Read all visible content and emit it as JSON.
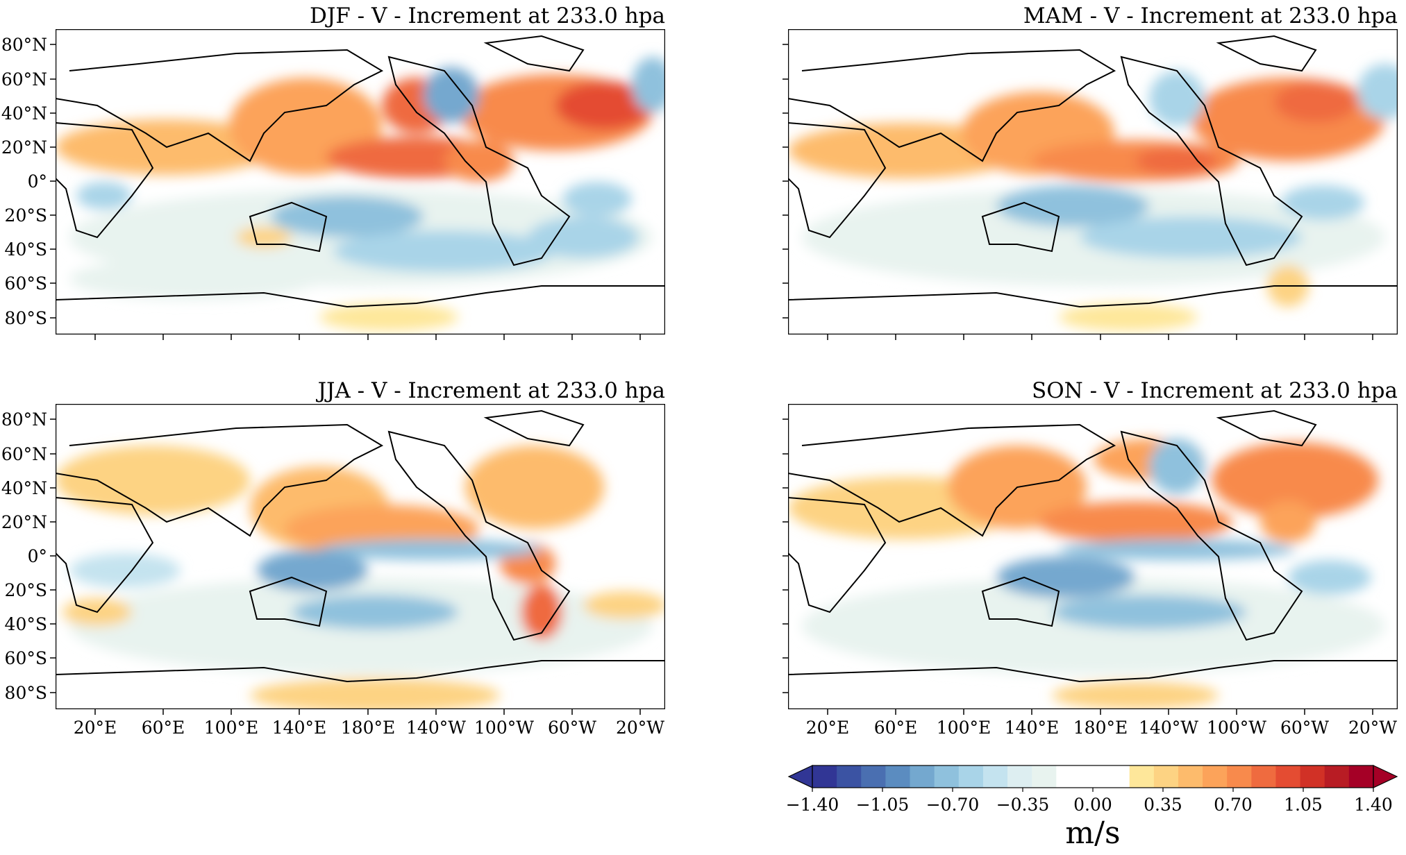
{
  "panels": [
    {
      "id": "djf",
      "title": "DJF - V - Increment at 233.0 hpa"
    },
    {
      "id": "mam",
      "title": "MAM - V - Increment at 233.0 hpa"
    },
    {
      "id": "jja",
      "title": "JJA - V - Increment at 233.0 hpa"
    },
    {
      "id": "son",
      "title": "SON - V - Increment at 233.0 hpa"
    }
  ],
  "lat_ticks": [
    "80°N",
    "60°N",
    "40°N",
    "20°N",
    "0°",
    "20°S",
    "40°S",
    "60°S",
    "80°S"
  ],
  "lon_ticks": [
    "20°E",
    "60°E",
    "100°E",
    "140°E",
    "180°E",
    "140°W",
    "100°W",
    "60°W",
    "20°W"
  ],
  "colorbar": {
    "ticks": [
      "−1.40",
      "−1.05",
      "−0.70",
      "−0.35",
      "0.00",
      "0.35",
      "0.70",
      "1.05",
      "1.40"
    ],
    "unit": "m/s",
    "colors": [
      "#313695",
      "#3b53a3",
      "#4a6fb1",
      "#5b8cc0",
      "#74a8cf",
      "#8fc1dd",
      "#a9d4e8",
      "#c4e3ef",
      "#ddeef1",
      "#e8f3ef",
      "#ffffff",
      "#ffffff",
      "#ffffff",
      "#fee79a",
      "#fdd383",
      "#fdbb6c",
      "#fca35a",
      "#f88a4c",
      "#ef6b3f",
      "#e44c32",
      "#d13126",
      "#b81c24",
      "#a50026"
    ]
  }
}
